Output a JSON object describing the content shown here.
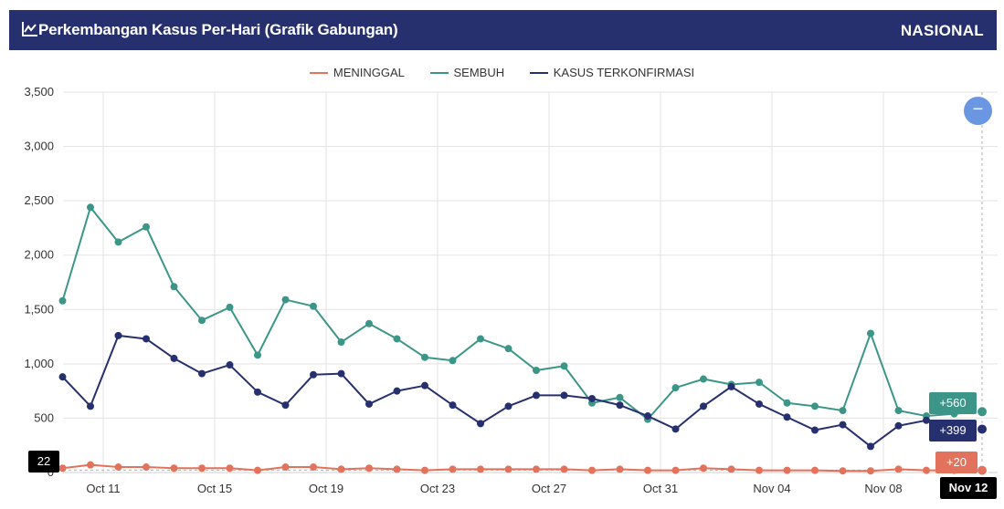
{
  "header": {
    "title": "Perkembangan Kasus Per-Hari (Grafik Gabungan)",
    "region": "NASIONAL"
  },
  "legend": [
    {
      "label": "MENINGGAL",
      "color": "#e2725b"
    },
    {
      "label": "SEMBUH",
      "color": "#3c9688"
    },
    {
      "label": "KASUS TERKONFIRMASI",
      "color": "#27306f"
    }
  ],
  "crosshair": {
    "x_label": "Nov 12",
    "y_label": "22",
    "values": {
      "sembuh": "+560",
      "konfirmasi": "+399",
      "meninggal": "+20"
    }
  },
  "zoom_button": {
    "icon": "minus-icon",
    "symbol": "−"
  },
  "chart_data": {
    "type": "line",
    "x_start": "Oct 10",
    "x": [
      "Oct 10",
      "Oct 11",
      "Oct 12",
      "Oct 13",
      "Oct 14",
      "Oct 15",
      "Oct 16",
      "Oct 17",
      "Oct 18",
      "Oct 19",
      "Oct 20",
      "Oct 21",
      "Oct 22",
      "Oct 23",
      "Oct 24",
      "Oct 25",
      "Oct 26",
      "Oct 27",
      "Oct 28",
      "Oct 29",
      "Oct 30",
      "Oct 31",
      "Nov 01",
      "Nov 02",
      "Nov 03",
      "Nov 04",
      "Nov 05",
      "Nov 06",
      "Nov 07",
      "Nov 08",
      "Nov 09",
      "Nov 10",
      "Nov 11",
      "Nov 12"
    ],
    "x_ticks": [
      "Oct 11",
      "Oct 15",
      "Oct 19",
      "Oct 23",
      "Oct 27",
      "Oct 31",
      "Nov 04",
      "Nov 08"
    ],
    "ylim": [
      0,
      3500
    ],
    "y_ticks": [
      "3,500",
      "3,000",
      "2,500",
      "2,000",
      "1,500",
      "1,000",
      "500",
      "0"
    ],
    "grid": true,
    "legend_position": "top",
    "series": [
      {
        "name": "MENINGGAL",
        "key": "meninggal",
        "color": "#e2725b",
        "values": [
          40,
          70,
          50,
          50,
          40,
          40,
          40,
          20,
          50,
          50,
          30,
          40,
          30,
          20,
          30,
          30,
          30,
          30,
          30,
          20,
          30,
          20,
          20,
          40,
          30,
          20,
          20,
          20,
          15,
          15,
          30,
          20,
          20,
          20
        ]
      },
      {
        "name": "SEMBUH",
        "key": "sembuh",
        "color": "#3c9688",
        "values": [
          1580,
          2440,
          2120,
          2260,
          1710,
          1400,
          1520,
          1080,
          1590,
          1530,
          1200,
          1370,
          1230,
          1060,
          1030,
          1230,
          1140,
          940,
          980,
          640,
          690,
          490,
          780,
          860,
          810,
          830,
          640,
          610,
          570,
          1280,
          570,
          520,
          540,
          560
        ]
      },
      {
        "name": "KASUS TERKONFIRMASI",
        "key": "konfirmasi",
        "color": "#27306f",
        "values": [
          880,
          610,
          1260,
          1230,
          1050,
          910,
          990,
          740,
          620,
          900,
          910,
          630,
          750,
          800,
          620,
          450,
          610,
          710,
          710,
          680,
          620,
          520,
          400,
          610,
          790,
          630,
          510,
          390,
          440,
          240,
          430,
          480,
          420,
          399
        ]
      }
    ]
  }
}
